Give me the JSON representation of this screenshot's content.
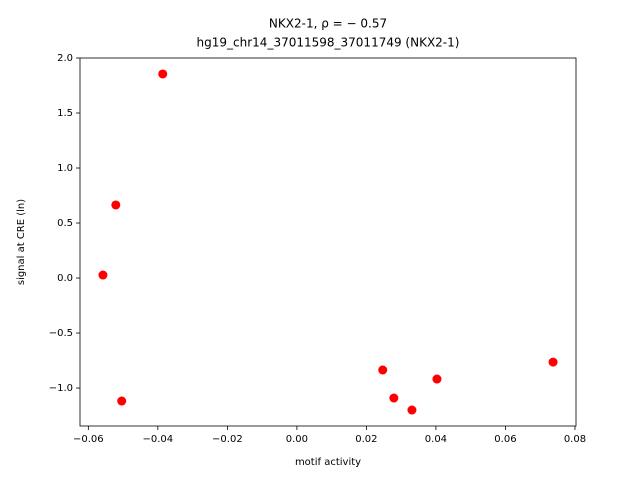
{
  "chart_data": {
    "type": "scatter",
    "title": "NKX2-1, ρ = − 0.57",
    "subtitle": "hg19_chr14_37011598_37011749 (NKX2-1)",
    "x_label": "motif activity",
    "y_label": "signal at CRE (ln)",
    "color": "#ff0000",
    "x": [
      -0.0386,
      -0.0521,
      -0.0558,
      -0.0504,
      0.0247,
      0.0279,
      0.0331,
      0.0403,
      0.0737
    ],
    "values": [
      1.855,
      0.664,
      0.027,
      -1.118,
      -0.836,
      -1.091,
      -1.2,
      -0.918,
      -0.764
    ],
    "xlim": [
      -0.0624,
      0.0803
    ],
    "ylim": [
      -1.345,
      2.0
    ],
    "xticks": [
      {
        "value": -0.06,
        "label": "−0.06"
      },
      {
        "value": -0.04,
        "label": "−0.04"
      },
      {
        "value": -0.02,
        "label": "−0.02"
      },
      {
        "value": 0,
        "label": "0.00"
      },
      {
        "value": 0.02,
        "label": "0.02"
      },
      {
        "value": 0.04,
        "label": "0.04"
      },
      {
        "value": 0.06,
        "label": "0.06"
      },
      {
        "value": 0.08,
        "label": "0.08"
      }
    ],
    "yticks": [
      {
        "value": -1,
        "label": "−1.0"
      },
      {
        "value": -0.5,
        "label": "−0.5"
      },
      {
        "value": 0,
        "label": "0.0"
      },
      {
        "value": 0.5,
        "label": "0.5"
      },
      {
        "value": 1,
        "label": "1.0"
      },
      {
        "value": 1.5,
        "label": "1.5"
      },
      {
        "value": 2,
        "label": "2.0"
      }
    ]
  }
}
